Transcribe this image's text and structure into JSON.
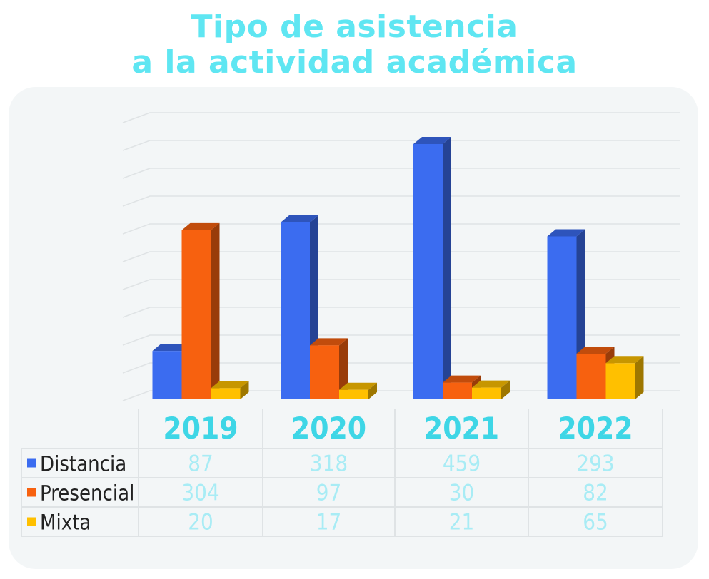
{
  "title_line1": "Tipo de asistencia",
  "title_line2": "a la actividad académica",
  "colors": {
    "title": "#5fe6f2",
    "values": "#a8ecf5",
    "years": "#3ed6e6",
    "grid": "#dfe3e5",
    "Distancia": "#3b6cf0",
    "Presencial": "#f7610f",
    "Mixta": "#ffc000"
  },
  "chart_data": {
    "type": "bar",
    "categories": [
      "2019",
      "2020",
      "2021",
      "2022"
    ],
    "series": [
      {
        "name": "Distancia",
        "values": [
          87,
          318,
          459,
          293
        ]
      },
      {
        "name": "Presencial",
        "values": [
          304,
          97,
          30,
          82
        ]
      },
      {
        "name": "Mixta",
        "values": [
          20,
          17,
          21,
          65
        ]
      }
    ],
    "grid": true,
    "legend": "table-bottom"
  }
}
